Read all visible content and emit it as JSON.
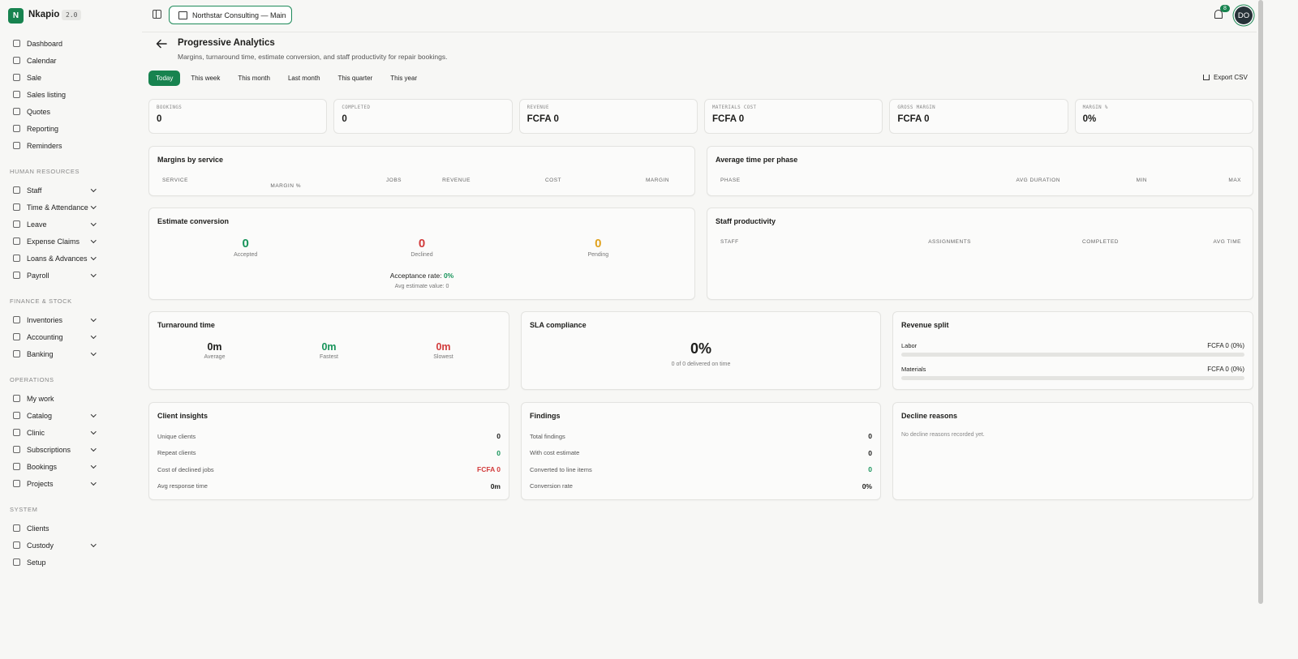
{
  "app": {
    "logo": "N",
    "name": "Nkapio",
    "version": "2.0"
  },
  "topbar": {
    "branch": "Northstar Consulting — Main",
    "notifications": "8",
    "avatar": "DO"
  },
  "sidebar": {
    "items": [
      {
        "label": "Dashboard"
      },
      {
        "label": "Calendar"
      },
      {
        "label": "Sale"
      },
      {
        "label": "Sales listing"
      },
      {
        "label": "Quotes"
      },
      {
        "label": "Reporting"
      },
      {
        "label": "Reminders"
      }
    ],
    "sections": [
      {
        "title": "HUMAN RESOURCES",
        "items": [
          {
            "label": "Staff",
            "expandable": true
          },
          {
            "label": "Time & Attendance",
            "expandable": true
          },
          {
            "label": "Leave",
            "expandable": true
          },
          {
            "label": "Expense Claims",
            "expandable": true
          },
          {
            "label": "Loans & Advances",
            "expandable": true
          },
          {
            "label": "Payroll",
            "expandable": true
          }
        ]
      },
      {
        "title": "FINANCE & STOCK",
        "items": [
          {
            "label": "Inventories",
            "expandable": true
          },
          {
            "label": "Accounting",
            "expandable": true
          },
          {
            "label": "Banking",
            "expandable": true
          }
        ]
      },
      {
        "title": "OPERATIONS",
        "items": [
          {
            "label": "My work",
            "expandable": false
          },
          {
            "label": "Catalog",
            "expandable": true
          },
          {
            "label": "Clinic",
            "expandable": true
          },
          {
            "label": "Subscriptions",
            "expandable": true
          },
          {
            "label": "Bookings",
            "expandable": true
          },
          {
            "label": "Projects",
            "expandable": true
          }
        ]
      },
      {
        "title": "SYSTEM",
        "items": [
          {
            "label": "Clients",
            "expandable": false
          },
          {
            "label": "Custody",
            "expandable": true
          },
          {
            "label": "Setup",
            "expandable": false
          }
        ]
      }
    ]
  },
  "page": {
    "title": "Progressive Analytics",
    "subtitle": "Margins, turnaround time, estimate conversion, and staff productivity for repair bookings.",
    "periods": [
      {
        "label": "Today",
        "active": true
      },
      {
        "label": "This week",
        "active": false
      },
      {
        "label": "This month",
        "active": false
      },
      {
        "label": "Last month",
        "active": false
      },
      {
        "label": "This quarter",
        "active": false
      },
      {
        "label": "This year",
        "active": false
      }
    ],
    "export": "Export CSV"
  },
  "kpis": [
    {
      "label": "BOOKINGS",
      "value": "0"
    },
    {
      "label": "COMPLETED",
      "value": "0"
    },
    {
      "label": "REVENUE",
      "value": "FCFA 0"
    },
    {
      "label": "MATERIALS COST",
      "value": "FCFA 0"
    },
    {
      "label": "GROSS MARGIN",
      "value": "FCFA 0"
    },
    {
      "label": "MARGIN %",
      "value": "0%"
    }
  ],
  "margins_by_service": {
    "title": "Margins by service",
    "columns": [
      "SERVICE",
      "JOBS",
      "REVENUE",
      "COST",
      "MARGIN",
      "MARGIN %"
    ]
  },
  "time_per_phase": {
    "title": "Average time per phase",
    "columns": [
      "PHASE",
      "AVG DURATION",
      "MIN",
      "MAX"
    ]
  },
  "estimate_conversion": {
    "title": "Estimate conversion",
    "stats": [
      {
        "value": "0",
        "label": "Accepted",
        "tone": "positive"
      },
      {
        "value": "0",
        "label": "Declined",
        "tone": "negative"
      },
      {
        "value": "0",
        "label": "Pending",
        "tone": "warning"
      }
    ],
    "rate_label": "Acceptance rate:",
    "rate": "0%",
    "avg": "Avg estimate value: 0"
  },
  "staff_productivity": {
    "title": "Staff productivity",
    "columns": [
      "STAFF",
      "ASSIGNMENTS",
      "COMPLETED",
      "AVG TIME"
    ]
  },
  "turnaround": {
    "title": "Turnaround time",
    "stats": [
      {
        "value": "0m",
        "label": "Average",
        "tone": "neutral"
      },
      {
        "value": "0m",
        "label": "Fastest",
        "tone": "positive"
      },
      {
        "value": "0m",
        "label": "Slowest",
        "tone": "negative"
      }
    ]
  },
  "sla": {
    "title": "SLA compliance",
    "value": "0%",
    "caption": "0 of 0 delivered on time"
  },
  "revenue_split": {
    "title": "Revenue split",
    "rows": [
      {
        "label": "Labor",
        "value": "FCFA 0 (0%)",
        "share": 0
      },
      {
        "label": "Materials",
        "value": "FCFA 0 (0%)",
        "share": 0
      }
    ]
  },
  "client_insights": {
    "title": "Client insights",
    "rows": [
      {
        "label": "Unique clients",
        "value": "0",
        "tone": "neutral"
      },
      {
        "label": "Repeat clients",
        "value": "0",
        "tone": "positive"
      },
      {
        "label": "Cost of declined jobs",
        "value": "FCFA 0",
        "tone": "negative"
      },
      {
        "label": "Avg response time",
        "value": "0m",
        "tone": "neutral"
      }
    ]
  },
  "findings": {
    "title": "Findings",
    "rows": [
      {
        "label": "Total findings",
        "value": "0",
        "tone": "neutral"
      },
      {
        "label": "With cost estimate",
        "value": "0",
        "tone": "neutral"
      },
      {
        "label": "Converted to line items",
        "value": "0",
        "tone": "positive"
      },
      {
        "label": "Conversion rate",
        "value": "0%",
        "tone": "neutral"
      }
    ]
  },
  "decline_reasons": {
    "title": "Decline reasons",
    "empty": "No decline reasons recorded yet."
  }
}
